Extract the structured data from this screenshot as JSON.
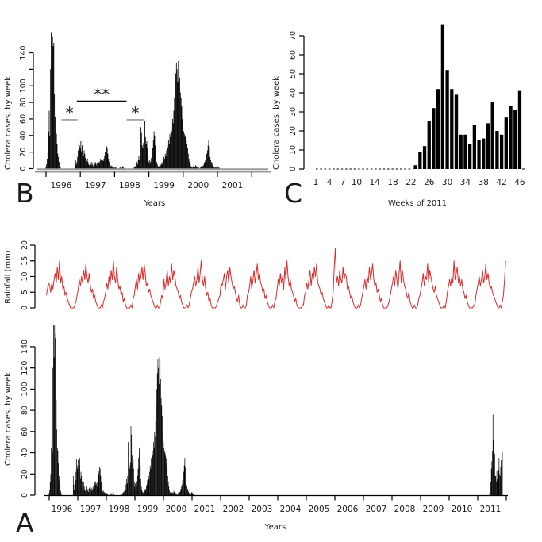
{
  "figure": {
    "background": "#ffffff"
  },
  "colors": {
    "bars": "#000000",
    "rain_line": "#d92b2b",
    "axis_gray": "#9a9a9a",
    "axis_black": "#000000",
    "text": "#1a1a1a"
  },
  "panels": {
    "b": {
      "letter": "B",
      "y_axis_label": "Cholera cases, by week",
      "x_axis_label": "Years"
    },
    "c": {
      "letter": "C",
      "y_axis_label": "Cholera cases, by week",
      "x_axis_label": "Weeks of 2011"
    },
    "a": {
      "letter": "A",
      "rain_y_axis_label": "Rainfall (mm)",
      "cholera_y_axis_label": "Cholera cases, by week",
      "x_axis_label": "Years"
    }
  },
  "chart_data": [
    {
      "id": "panel_b_cholera_1996_2001",
      "type": "bar",
      "ylabel": "Cholera cases, by week",
      "xlabel": "Years",
      "x_start_year": 1995.9,
      "x_step_weeks": 1,
      "xlim": [
        1995.7,
        2002.1
      ],
      "ylim": [
        0,
        165
      ],
      "yticks": [
        0,
        20,
        40,
        60,
        80,
        100,
        120,
        140
      ],
      "ytick_labels": [
        "0",
        "20",
        "40",
        "60",
        "80",
        "100",
        "",
        "140"
      ],
      "xticks": [
        1996,
        1997,
        1998,
        1999,
        2000,
        2001,
        2002
      ],
      "xtick_labels": [
        "1996",
        "1997",
        "1998",
        "1999",
        "2000",
        "2001",
        ""
      ],
      "values": [
        0,
        0,
        0,
        0,
        0,
        2,
        5,
        12,
        20,
        45,
        70,
        40,
        120,
        165,
        130,
        160,
        148,
        152,
        90,
        62,
        45,
        42,
        30,
        18,
        14,
        8,
        4,
        2,
        0,
        0,
        0,
        0,
        0,
        0,
        0,
        0,
        0,
        0,
        0,
        0,
        0,
        0,
        0,
        0,
        0,
        0,
        0,
        0,
        0,
        18,
        10,
        5,
        8,
        14,
        22,
        34,
        28,
        25,
        33,
        21,
        28,
        35,
        16,
        22,
        18,
        13,
        7,
        9,
        12,
        8,
        5,
        4,
        3,
        5,
        8,
        4,
        6,
        3,
        7,
        5,
        8,
        6,
        4,
        7,
        5,
        8,
        6,
        9,
        12,
        10,
        13,
        11,
        9,
        12,
        16,
        20,
        23,
        27,
        25,
        18,
        12,
        8,
        5,
        3,
        4,
        2,
        3,
        2,
        1,
        1,
        2,
        1,
        1,
        0,
        0,
        0,
        0,
        1,
        2,
        0,
        0,
        3,
        2,
        1,
        0,
        0,
        0,
        0,
        0,
        0,
        0,
        0,
        0,
        0,
        0,
        0,
        0,
        1,
        0,
        2,
        3,
        2,
        4,
        8,
        5,
        10,
        15,
        11,
        18,
        50,
        44,
        28,
        25,
        31,
        65,
        57,
        38,
        30,
        33,
        25,
        13,
        8,
        11,
        6,
        9,
        13,
        18,
        25,
        35,
        45,
        40,
        28,
        15,
        8,
        5,
        3,
        2,
        3,
        2,
        4,
        6,
        5,
        8,
        10,
        14,
        12,
        18,
        15,
        22,
        28,
        25,
        35,
        30,
        42,
        38,
        50,
        45,
        60,
        55,
        70,
        85,
        100,
        115,
        128,
        120,
        105,
        130,
        126,
        110,
        92,
        85,
        75,
        60,
        50,
        45,
        42,
        40,
        38,
        35,
        30,
        25,
        18,
        12,
        8,
        5,
        3,
        2,
        1,
        2,
        3,
        2,
        2,
        4,
        3,
        2,
        1,
        2,
        1,
        0,
        1,
        2,
        3,
        2,
        3,
        4,
        6,
        8,
        10,
        14,
        18,
        22,
        28,
        35,
        26,
        14,
        10,
        8,
        6,
        4,
        3,
        2,
        1,
        2,
        1,
        2,
        3,
        2,
        1,
        1,
        0,
        0,
        0,
        0,
        0,
        0,
        0,
        0,
        0,
        0,
        0,
        0,
        0,
        0,
        0,
        0,
        0,
        0,
        0,
        0,
        0,
        0,
        0,
        0,
        0,
        0
      ],
      "significance_markers": [
        {
          "symbol": "*",
          "x_from": 1996.45,
          "x_to": 1996.92,
          "y_value": 59,
          "line_color": "#9a9a9a"
        },
        {
          "symbol": "**",
          "x_from": 1996.9,
          "x_to": 1998.35,
          "y_value": 81.5,
          "line_color": "#000000"
        },
        {
          "symbol": "*",
          "x_from": 1998.35,
          "x_to": 1998.85,
          "y_value": 59,
          "line_color": "#9a9a9a"
        }
      ]
    },
    {
      "id": "panel_c_cholera_weeks_2011",
      "type": "bar",
      "ylabel": "Cholera cases, by week",
      "xlabel": "Weeks of 2011",
      "week_start": 23,
      "values": [
        2,
        9,
        12,
        25,
        32,
        42,
        76,
        52,
        42,
        39,
        18,
        18,
        13,
        23,
        15,
        16,
        24,
        35,
        20,
        18,
        27,
        33,
        31,
        41
      ],
      "xlim": [
        0,
        48.5
      ],
      "ylim": [
        0,
        78
      ],
      "yticks": [
        0,
        10,
        20,
        30,
        40,
        50,
        60,
        70
      ],
      "ytick_labels": [
        "0",
        "10",
        "20",
        "30",
        "40",
        "50",
        "60",
        "70"
      ],
      "xticks": [
        1,
        4,
        7,
        10,
        14,
        18,
        22,
        26,
        30,
        34,
        38,
        42,
        46
      ],
      "xtick_labels": [
        "1",
        "4",
        "7",
        "10",
        "14",
        "18",
        "22",
        "26",
        "30",
        "34",
        "38",
        "42",
        "46"
      ],
      "zero_dash_weeks": [
        1,
        22.6
      ]
    },
    {
      "id": "panel_a_rainfall",
      "type": "line",
      "ylabel": "Rainfall (mm)",
      "x_start_year": 1995.9,
      "x_step_weeks": 2,
      "ylim": [
        0,
        20
      ],
      "yticks": [
        0,
        5,
        10,
        15,
        20
      ],
      "ytick_labels": [
        "0",
        "5",
        "10",
        "15",
        "20"
      ],
      "values": [
        4,
        6,
        8,
        7,
        5,
        8,
        6,
        9,
        11,
        8,
        13,
        9,
        15,
        8,
        10,
        6,
        7,
        4,
        5,
        3,
        2,
        1,
        0,
        0,
        0,
        0,
        1,
        2,
        4,
        6,
        9,
        7,
        10,
        8,
        12,
        9,
        14,
        10,
        8,
        11,
        7,
        5,
        6,
        3,
        4,
        2,
        1,
        0,
        0,
        0,
        1,
        0,
        2,
        3,
        5,
        8,
        6,
        10,
        7,
        12,
        9,
        15,
        10,
        8,
        13,
        9,
        6,
        7,
        4,
        5,
        2,
        3,
        1,
        0,
        0,
        0,
        0,
        1,
        0,
        3,
        4,
        7,
        9,
        6,
        11,
        8,
        10,
        13,
        9,
        14,
        11,
        7,
        8,
        5,
        6,
        4,
        3,
        2,
        1,
        0,
        0,
        1,
        0,
        0,
        2,
        4,
        3,
        9,
        6,
        8,
        12,
        7,
        10,
        8,
        14,
        9,
        12,
        10,
        7,
        6,
        5,
        3,
        4,
        2,
        1,
        0,
        0,
        0,
        1,
        0,
        1,
        3,
        5,
        6,
        8,
        10,
        7,
        9,
        13,
        8,
        11,
        15,
        9,
        7,
        10,
        6,
        4,
        5,
        2,
        3,
        1,
        0,
        0,
        0,
        0,
        1,
        2,
        3,
        4,
        8,
        7,
        9,
        11,
        6,
        10,
        12,
        8,
        13,
        10,
        8,
        6,
        7,
        5,
        3,
        2,
        4,
        1,
        0,
        0,
        1,
        0,
        0,
        1,
        4,
        5,
        7,
        10,
        6,
        9,
        12,
        8,
        11,
        14,
        9,
        11,
        8,
        7,
        5,
        6,
        3,
        4,
        2,
        1,
        0,
        0,
        0,
        1,
        0,
        2,
        3,
        6,
        9,
        7,
        11,
        8,
        10,
        6,
        13,
        9,
        15,
        10,
        7,
        9,
        6,
        5,
        4,
        2,
        3,
        1,
        0,
        0,
        0,
        0,
        1,
        1,
        4,
        5,
        8,
        6,
        9,
        12,
        7,
        11,
        9,
        13,
        10,
        14,
        8,
        7,
        6,
        4,
        5,
        3,
        2,
        1,
        0,
        0,
        1,
        0,
        0,
        2,
        5,
        13,
        19,
        8,
        10,
        7,
        12,
        9,
        8,
        13,
        9,
        11,
        10,
        6,
        7,
        5,
        3,
        4,
        2,
        1,
        0,
        0,
        0,
        1,
        0,
        1,
        3,
        5,
        7,
        9,
        6,
        10,
        8,
        13,
        9,
        11,
        14,
        9,
        7,
        8,
        5,
        6,
        4,
        2,
        3,
        1,
        0,
        0,
        0,
        0,
        1,
        2,
        4,
        6,
        8,
        10,
        7,
        12,
        9,
        6,
        11,
        15,
        8,
        12,
        9,
        7,
        6,
        4,
        3,
        5,
        2,
        1,
        0,
        0,
        1,
        0,
        0,
        1,
        3,
        4,
        6,
        8,
        11,
        7,
        10,
        9,
        14,
        8,
        12,
        10,
        8,
        6,
        5,
        7,
        4,
        3,
        2,
        1,
        0,
        0,
        0,
        1,
        0,
        2,
        5,
        7,
        9,
        7,
        10,
        8,
        15,
        9,
        11,
        13,
        8,
        10,
        7,
        9,
        6,
        5,
        3,
        4,
        2,
        1,
        0,
        0,
        0,
        0,
        1,
        1,
        4,
        6,
        8,
        10,
        7,
        9,
        12,
        8,
        10,
        14,
        9,
        11,
        8,
        6,
        7,
        5,
        4,
        3,
        2,
        1,
        0,
        0,
        1,
        0,
        2,
        4,
        9,
        15
      ]
    },
    {
      "id": "panel_a_cholera_1996_2011",
      "type": "bar",
      "ylabel": "Cholera cases, by week",
      "xlabel": "Years",
      "x_start_year": 1995.9,
      "x_step_weeks": 1,
      "total_weeks": 838,
      "compose_from": [
        {
          "source_index": 0,
          "at_week": 0,
          "note": "same 1995-2001 weekly series as panel B"
        },
        {
          "source_index": 1,
          "at_week": 807,
          "note": "same 2011 outbreak weekly series as panel C"
        }
      ],
      "xlim": [
        1995.7,
        2012.1
      ],
      "ylim": [
        0,
        160
      ],
      "yticks": [
        0,
        20,
        40,
        60,
        80,
        100,
        120,
        140
      ],
      "ytick_labels": [
        "0",
        "20",
        "40",
        "60",
        "80",
        "100",
        "120",
        "140"
      ],
      "xticks": [
        1996,
        1997,
        1998,
        1999,
        2000,
        2001,
        2002,
        2003,
        2004,
        2005,
        2006,
        2007,
        2008,
        2009,
        2010,
        2011,
        2012
      ],
      "xtick_labels": [
        "1996",
        "1997",
        "1998",
        "1999",
        "2000",
        "2001",
        "2002",
        "2003",
        "2004",
        "2005",
        "2006",
        "2007",
        "2008",
        "2009",
        "2010",
        "2011",
        ""
      ]
    }
  ]
}
